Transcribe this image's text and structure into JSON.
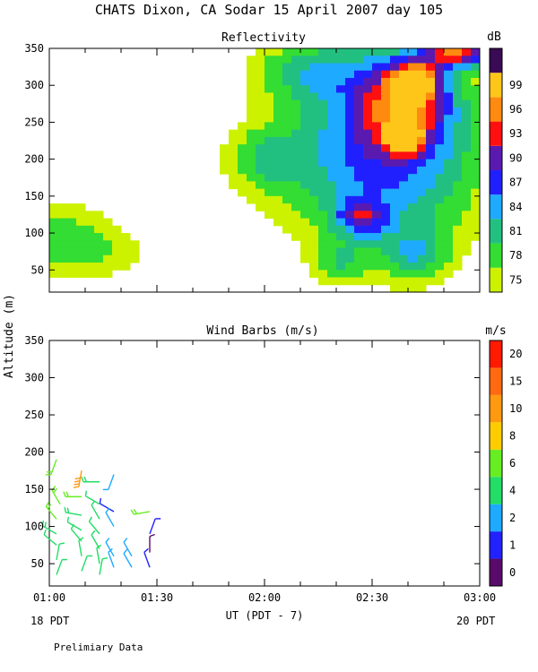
{
  "header": {
    "title": "CHATS Dixon, CA  Sodar  15 April 2007  day 105",
    "ylabel": "Altitude (m)",
    "xlabel": "UT  (PDT - 7)",
    "left_note": "18 PDT",
    "right_note": "20 PDT",
    "footer": "Prelimiary Data"
  },
  "chart_data": [
    {
      "type": "heatmap",
      "title": "Reflectivity",
      "colorbar_unit": "dB",
      "x_ticks": [
        "01:00",
        "01:30",
        "02:00",
        "02:30",
        "03:00"
      ],
      "xlim_hours": [
        1.0,
        3.0
      ],
      "ylim": [
        20,
        350
      ],
      "y_ticks": [
        50,
        100,
        150,
        200,
        250,
        300,
        350
      ],
      "levels": [
        75,
        78,
        81,
        84,
        87,
        90,
        93,
        96,
        99
      ],
      "level_colors": [
        "#ccf200",
        "#33dd33",
        "#22c080",
        "#1eaaff",
        "#2020ff",
        "#5a1ab0",
        "#ff1010",
        "#ff8a10",
        "#ffc61a",
        "#3a0a55"
      ],
      "note": "Gridded contour field (x = UT hours, y = altitude m); dB colour classes as listed."
    },
    {
      "type": "scatter",
      "title": "Wind Barbs (m/s)",
      "colorbar_unit": "m/s",
      "x_ticks": [
        "01:00",
        "01:30",
        "02:00",
        "02:30",
        "03:00"
      ],
      "xlim_hours": [
        1.0,
        3.0
      ],
      "ylim": [
        20,
        350
      ],
      "y_ticks": [
        50,
        100,
        150,
        200,
        250,
        300,
        350
      ],
      "speed_levels": [
        0,
        1,
        2,
        4,
        6,
        8,
        10,
        15,
        20
      ],
      "speed_colors": [
        "#5a0a6a",
        "#2222ff",
        "#1eaaff",
        "#22dd66",
        "#66ee22",
        "#ffcc00",
        "#ff9a10",
        "#ff6a10",
        "#ff1a00"
      ],
      "barbs": [
        {
          "t": "01:02",
          "alt": 190,
          "spd": 6,
          "dir": 200
        },
        {
          "t": "01:03",
          "alt": 130,
          "spd": 6,
          "dir": 330
        },
        {
          "t": "01:02",
          "alt": 110,
          "spd": 6,
          "dir": 320
        },
        {
          "t": "01:02",
          "alt": 90,
          "spd": 5,
          "dir": 300
        },
        {
          "t": "01:02",
          "alt": 75,
          "spd": 4,
          "dir": 310
        },
        {
          "t": "01:02",
          "alt": 55,
          "spd": 4,
          "dir": 10
        },
        {
          "t": "01:02",
          "alt": 35,
          "spd": 4,
          "dir": 20
        },
        {
          "t": "01:09",
          "alt": 175,
          "spd": 12,
          "dir": 190
        },
        {
          "t": "01:09",
          "alt": 140,
          "spd": 6,
          "dir": 270
        },
        {
          "t": "01:09",
          "alt": 115,
          "spd": 5,
          "dir": 280
        },
        {
          "t": "01:09",
          "alt": 95,
          "spd": 4,
          "dir": 300
        },
        {
          "t": "01:09",
          "alt": 80,
          "spd": 4,
          "dir": 320
        },
        {
          "t": "01:09",
          "alt": 60,
          "spd": 4,
          "dir": 350
        },
        {
          "t": "01:09",
          "alt": 40,
          "spd": 4,
          "dir": 20
        },
        {
          "t": "01:14",
          "alt": 160,
          "spd": 5,
          "dir": 270
        },
        {
          "t": "01:14",
          "alt": 130,
          "spd": 4,
          "dir": 300
        },
        {
          "t": "01:14",
          "alt": 110,
          "spd": 4,
          "dir": 330
        },
        {
          "t": "01:14",
          "alt": 90,
          "spd": 4,
          "dir": 320
        },
        {
          "t": "01:14",
          "alt": 70,
          "spd": 4,
          "dir": 330
        },
        {
          "t": "01:14",
          "alt": 50,
          "spd": 4,
          "dir": 350
        },
        {
          "t": "01:14",
          "alt": 35,
          "spd": 4,
          "dir": 10
        },
        {
          "t": "01:18",
          "alt": 170,
          "spd": 2,
          "dir": 200
        },
        {
          "t": "01:18",
          "alt": 120,
          "spd": 1,
          "dir": 300
        },
        {
          "t": "01:18",
          "alt": 100,
          "spd": 3,
          "dir": 330
        },
        {
          "t": "01:18",
          "alt": 60,
          "spd": 2,
          "dir": 330
        },
        {
          "t": "01:18",
          "alt": 45,
          "spd": 3,
          "dir": 340
        },
        {
          "t": "01:23",
          "alt": 60,
          "spd": 2,
          "dir": 330
        },
        {
          "t": "01:23",
          "alt": 45,
          "spd": 3,
          "dir": 330
        },
        {
          "t": "01:28",
          "alt": 120,
          "spd": 6,
          "dir": 260
        },
        {
          "t": "01:28",
          "alt": 90,
          "spd": 1,
          "dir": 20
        },
        {
          "t": "01:28",
          "alt": 65,
          "spd": 0,
          "dir": 0
        },
        {
          "t": "01:28",
          "alt": 45,
          "spd": 1,
          "dir": 340
        }
      ]
    }
  ]
}
